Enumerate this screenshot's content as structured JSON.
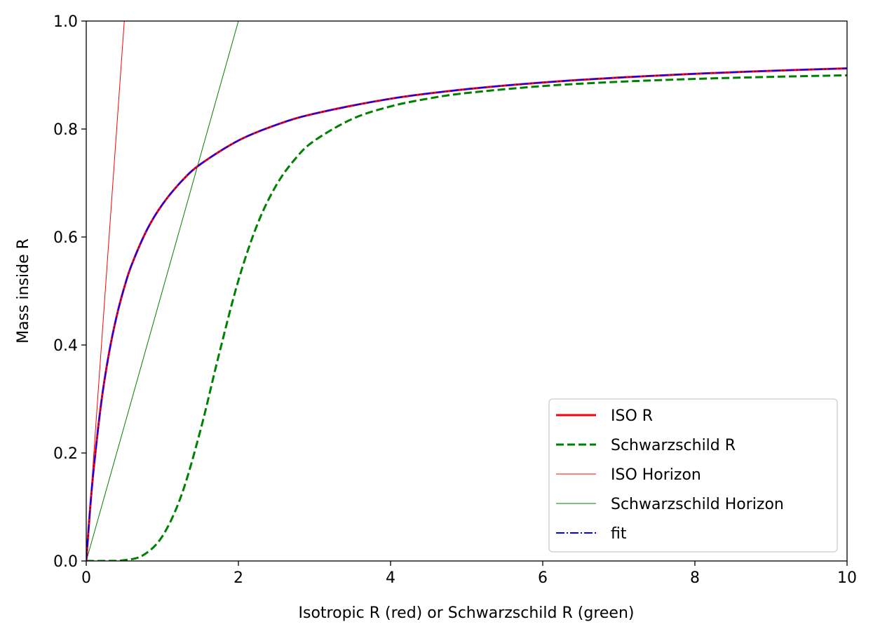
{
  "chart_data": {
    "type": "line",
    "title": "",
    "xlabel": "Isotropic R (red) or Schwarzschild R (green)",
    "ylabel": "Mass inside R",
    "xlim": [
      0,
      10
    ],
    "ylim": [
      0,
      1
    ],
    "xticks": [
      "0",
      "2",
      "4",
      "6",
      "8",
      "10"
    ],
    "yticks": [
      "0.0",
      "0.2",
      "0.4",
      "0.6",
      "0.8",
      "1.0"
    ],
    "grid": false,
    "legend_position": "lower-right",
    "series": [
      {
        "name": "ISO R",
        "color": "#ff0000",
        "style": "solid",
        "x": [
          0,
          0.05,
          0.1,
          0.2,
          0.3,
          0.4,
          0.5,
          0.6,
          0.8,
          1.0,
          1.25,
          1.5,
          2.0,
          2.5,
          3.0,
          4.0,
          5.0,
          6.0,
          7.0,
          8.0,
          9.0,
          10.0
        ],
        "y": [
          0,
          0.0952,
          0.1736,
          0.2963,
          0.3856,
          0.4535,
          0.5067,
          0.5496,
          0.6139,
          0.6601,
          0.7029,
          0.7347,
          0.7787,
          0.8078,
          0.8285,
          0.8561,
          0.8738,
          0.8862,
          0.8953,
          0.9023,
          0.9078,
          0.9123
        ]
      },
      {
        "name": "Schwarzschild R",
        "color": "#008000",
        "style": "dashed",
        "x": [
          0,
          0.25,
          0.5,
          0.75,
          1.0,
          1.25,
          1.5,
          1.75,
          2.0,
          2.25,
          2.5,
          2.75,
          3.0,
          3.5,
          4.0,
          4.5,
          5.0,
          6.0,
          7.0,
          8.0,
          9.0,
          10.0
        ],
        "y": [
          0,
          0.0001,
          0.0014,
          0.0109,
          0.0457,
          0.1214,
          0.2416,
          0.3855,
          0.5196,
          0.6237,
          0.6964,
          0.7453,
          0.7785,
          0.8189,
          0.8419,
          0.8565,
          0.8667,
          0.8796,
          0.8875,
          0.8928,
          0.8966,
          0.8995
        ]
      },
      {
        "name": "ISO Horizon",
        "color": "#ff0000",
        "style": "thin",
        "x": [
          0,
          0.5
        ],
        "y": [
          0,
          1.0
        ]
      },
      {
        "name": "Schwarzschild Horizon",
        "color": "#008000",
        "style": "thin",
        "x": [
          0,
          2.0
        ],
        "y": [
          0,
          1.0
        ]
      },
      {
        "name": "fit",
        "color": "#0000ff",
        "style": "dashdot",
        "x": [
          0,
          0.05,
          0.1,
          0.2,
          0.3,
          0.4,
          0.5,
          0.6,
          0.8,
          1.0,
          1.25,
          1.5,
          2.0,
          2.5,
          3.0,
          4.0,
          5.0,
          6.0,
          7.0,
          8.0,
          9.0,
          10.0
        ],
        "y": [
          0,
          0.0952,
          0.1736,
          0.2963,
          0.3856,
          0.4535,
          0.5067,
          0.5496,
          0.6139,
          0.6601,
          0.7029,
          0.7347,
          0.7787,
          0.8078,
          0.8285,
          0.8561,
          0.8738,
          0.8862,
          0.8953,
          0.9023,
          0.9078,
          0.9123
        ]
      }
    ]
  }
}
